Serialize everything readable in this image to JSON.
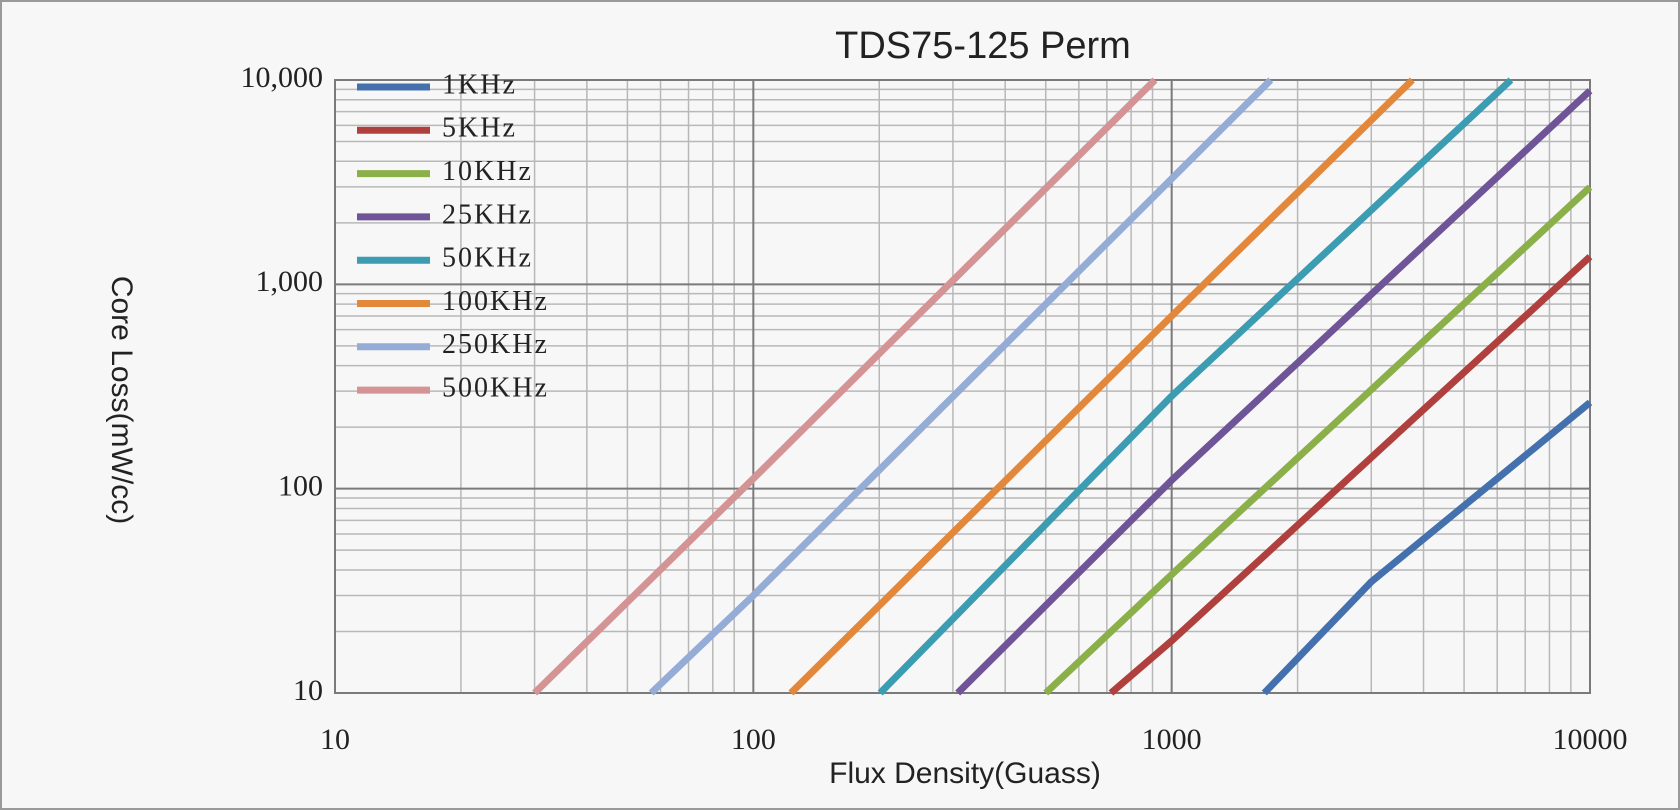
{
  "chart_data": {
    "type": "line",
    "title": "TDS75-125 Perm",
    "x_label": "Flux Density(Guass)",
    "y_label": "Core Loss(mW/cc)",
    "xlog": true,
    "ylog": true,
    "grid": true,
    "legend": "upper-left",
    "xlim": [
      10,
      10000
    ],
    "xticks": [
      10,
      100,
      1000,
      10000
    ],
    "ylim": [
      10,
      10000
    ],
    "yticks": [
      10,
      100,
      {
        "value": 1000,
        "label": "1,000"
      },
      {
        "value": 10000,
        "label": "10,000"
      }
    ],
    "series": [
      {
        "name": "1KHz",
        "color": "#4471ad",
        "x": [
          1665,
          3000,
          10000
        ],
        "values": [
          10,
          35,
          264
        ]
      },
      {
        "name": "5KHz",
        "color": "#b0403d",
        "x": [
          716,
          1000,
          10000
        ],
        "values": [
          10,
          18,
          1365
        ]
      },
      {
        "name": "10KHz",
        "color": "#8bb04a",
        "x": [
          500,
          1000,
          10000
        ],
        "values": [
          10,
          38,
          2990
        ]
      },
      {
        "name": "25KHz",
        "color": "#6f5597",
        "x": [
          308,
          1000,
          10000
        ],
        "values": [
          10,
          110,
          8870
        ]
      },
      {
        "name": "50KHz",
        "color": "#3b9cb2",
        "x": [
          201,
          1000,
          6470
        ],
        "values": [
          10,
          284,
          10000
        ]
      },
      {
        "name": "100KHz",
        "color": "#e3883a",
        "x": [
          123,
          1000,
          3760
        ],
        "values": [
          10,
          700,
          10000
        ]
      },
      {
        "name": "250KHz",
        "color": "#94acd6",
        "x": [
          57,
          100,
          1725
        ],
        "values": [
          10,
          30,
          10000
        ]
      },
      {
        "name": "500KHz",
        "color": "#d49394",
        "x": [
          30,
          100,
          912
        ],
        "values": [
          10,
          112,
          10000
        ]
      }
    ]
  }
}
